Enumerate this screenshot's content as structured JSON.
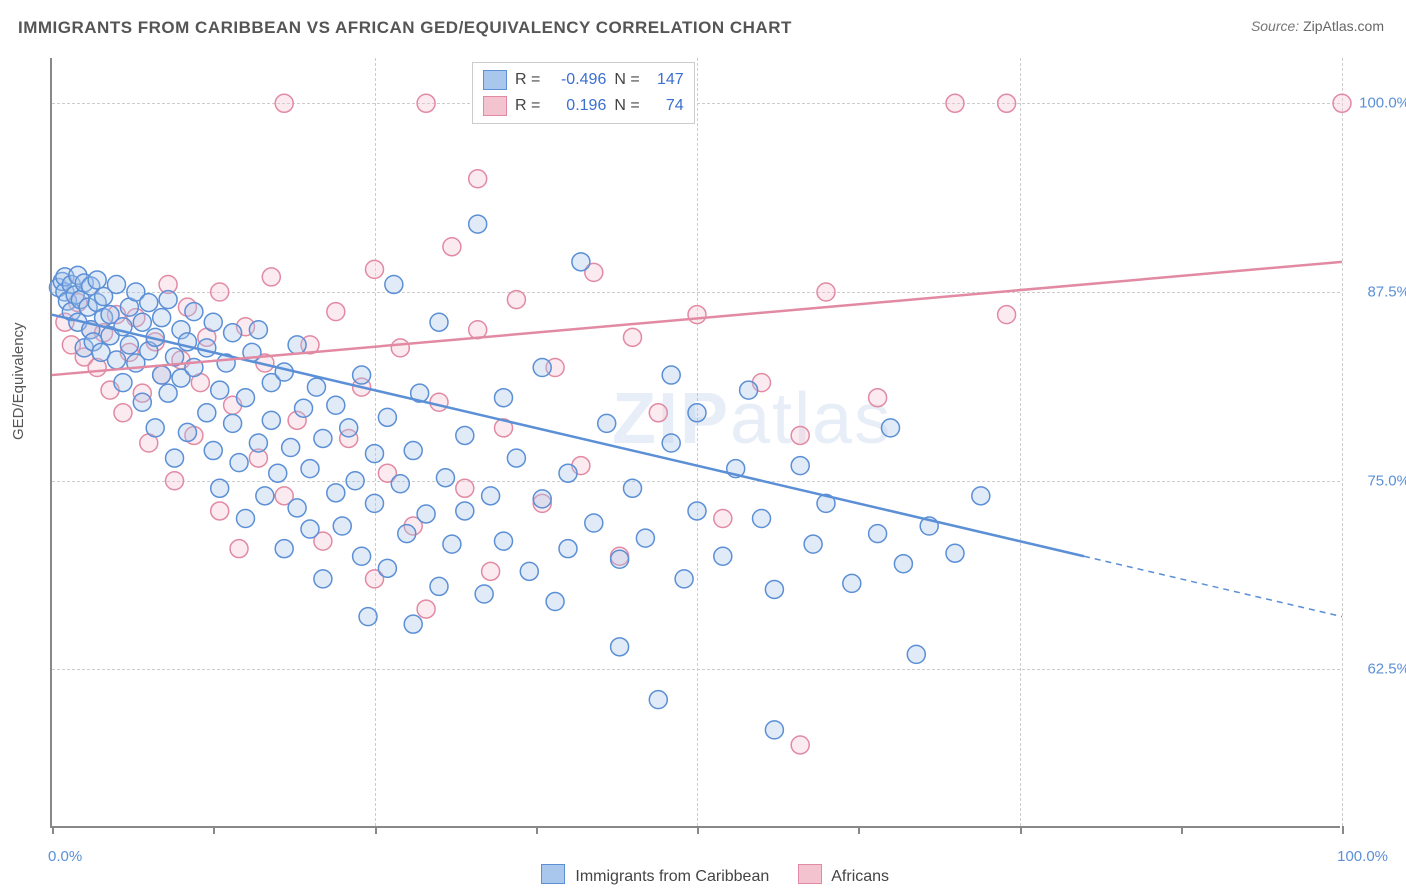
{
  "title": "IMMIGRANTS FROM CARIBBEAN VS AFRICAN GED/EQUIVALENCY CORRELATION CHART",
  "source_prefix": "Source: ",
  "source_name": "ZipAtlas.com",
  "ylabel": "GED/Equivalency",
  "watermark_bold": "ZIP",
  "watermark_rest": "atlas",
  "chart": {
    "type": "scatter",
    "xlim": [
      0,
      100
    ],
    "ylim": [
      52,
      103
    ],
    "background_color": "#ffffff",
    "grid_color": "#cccccc",
    "axis_color": "#888888",
    "marker_radius": 9,
    "marker_stroke_width": 1.5,
    "marker_fill_opacity": 0.35,
    "line_width": 2.5,
    "y_gridlines": [
      62.5,
      75,
      87.5,
      100
    ],
    "y_tick_labels": [
      "62.5%",
      "75.0%",
      "87.5%",
      "100.0%"
    ],
    "x_gridlines": [
      25,
      50,
      75,
      100
    ],
    "x_tick_positions": [
      0,
      12.5,
      25,
      37.5,
      50,
      62.5,
      75,
      87.5,
      100
    ],
    "x_tick_labels": {
      "min": "0.0%",
      "max": "100.0%"
    },
    "series": [
      {
        "key": "caribbean",
        "label": "Immigrants from Caribbean",
        "color_stroke": "#5b8fd6",
        "color_fill": "#a9c6ec",
        "r_label": "R =",
        "r_value": "-0.496",
        "n_label": "N =",
        "n_value": "147",
        "trend": {
          "x1": 0,
          "y1": 86,
          "x2_solid": 80,
          "y2_solid": 70,
          "x2": 100,
          "y2": 66
        },
        "points": [
          [
            0.5,
            87.8
          ],
          [
            0.8,
            88.2
          ],
          [
            1,
            87.5
          ],
          [
            1,
            88.5
          ],
          [
            1.2,
            86.9
          ],
          [
            1.5,
            88.0
          ],
          [
            1.5,
            86.2
          ],
          [
            1.8,
            87.3
          ],
          [
            2,
            88.6
          ],
          [
            2,
            85.5
          ],
          [
            2.2,
            87.0
          ],
          [
            2.5,
            88.1
          ],
          [
            2.5,
            83.8
          ],
          [
            2.8,
            86.5
          ],
          [
            3,
            85.0
          ],
          [
            3,
            87.9
          ],
          [
            3.2,
            84.2
          ],
          [
            3.5,
            86.8
          ],
          [
            3.5,
            88.3
          ],
          [
            3.8,
            83.5
          ],
          [
            4,
            85.8
          ],
          [
            4,
            87.2
          ],
          [
            4.5,
            84.6
          ],
          [
            4.5,
            86.0
          ],
          [
            5,
            88.0
          ],
          [
            5,
            83.0
          ],
          [
            5.5,
            85.2
          ],
          [
            5.5,
            81.5
          ],
          [
            6,
            86.5
          ],
          [
            6,
            84.0
          ],
          [
            6.5,
            87.5
          ],
          [
            6.5,
            82.8
          ],
          [
            7,
            85.5
          ],
          [
            7,
            80.2
          ],
          [
            7.5,
            83.6
          ],
          [
            7.5,
            86.8
          ],
          [
            8,
            84.5
          ],
          [
            8,
            78.5
          ],
          [
            8.5,
            82.0
          ],
          [
            8.5,
            85.8
          ],
          [
            9,
            87.0
          ],
          [
            9,
            80.8
          ],
          [
            9.5,
            83.2
          ],
          [
            9.5,
            76.5
          ],
          [
            10,
            85.0
          ],
          [
            10,
            81.8
          ],
          [
            10.5,
            78.2
          ],
          [
            10.5,
            84.2
          ],
          [
            11,
            82.5
          ],
          [
            11,
            86.2
          ],
          [
            12,
            79.5
          ],
          [
            12,
            83.8
          ],
          [
            12.5,
            77.0
          ],
          [
            12.5,
            85.5
          ],
          [
            13,
            81.0
          ],
          [
            13,
            74.5
          ],
          [
            13.5,
            82.8
          ],
          [
            14,
            78.8
          ],
          [
            14,
            84.8
          ],
          [
            14.5,
            76.2
          ],
          [
            15,
            80.5
          ],
          [
            15,
            72.5
          ],
          [
            15.5,
            83.5
          ],
          [
            16,
            77.5
          ],
          [
            16,
            85.0
          ],
          [
            16.5,
            74.0
          ],
          [
            17,
            81.5
          ],
          [
            17,
            79.0
          ],
          [
            17.5,
            75.5
          ],
          [
            18,
            82.2
          ],
          [
            18,
            70.5
          ],
          [
            18.5,
            77.2
          ],
          [
            19,
            84.0
          ],
          [
            19,
            73.2
          ],
          [
            19.5,
            79.8
          ],
          [
            20,
            75.8
          ],
          [
            20,
            71.8
          ],
          [
            20.5,
            81.2
          ],
          [
            21,
            77.8
          ],
          [
            21,
            68.5
          ],
          [
            22,
            74.2
          ],
          [
            22,
            80.0
          ],
          [
            22.5,
            72.0
          ],
          [
            23,
            78.5
          ],
          [
            23.5,
            75.0
          ],
          [
            24,
            70.0
          ],
          [
            24,
            82.0
          ],
          [
            24.5,
            66.0
          ],
          [
            25,
            76.8
          ],
          [
            25,
            73.5
          ],
          [
            26,
            79.2
          ],
          [
            26,
            69.2
          ],
          [
            26.5,
            88.0
          ],
          [
            27,
            74.8
          ],
          [
            27.5,
            71.5
          ],
          [
            28,
            77.0
          ],
          [
            28,
            65.5
          ],
          [
            28.5,
            80.8
          ],
          [
            29,
            72.8
          ],
          [
            30,
            68.0
          ],
          [
            30,
            85.5
          ],
          [
            30.5,
            75.2
          ],
          [
            31,
            70.8
          ],
          [
            32,
            78.0
          ],
          [
            32,
            73.0
          ],
          [
            33,
            92.0
          ],
          [
            33.5,
            67.5
          ],
          [
            34,
            74.0
          ],
          [
            35,
            71.0
          ],
          [
            35,
            80.5
          ],
          [
            36,
            76.5
          ],
          [
            37,
            69.0
          ],
          [
            38,
            73.8
          ],
          [
            38,
            82.5
          ],
          [
            39,
            67.0
          ],
          [
            40,
            75.5
          ],
          [
            40,
            70.5
          ],
          [
            41,
            89.5
          ],
          [
            42,
            72.2
          ],
          [
            43,
            78.8
          ],
          [
            44,
            69.8
          ],
          [
            44,
            64.0
          ],
          [
            45,
            74.5
          ],
          [
            46,
            71.2
          ],
          [
            47,
            60.5
          ],
          [
            48,
            77.5
          ],
          [
            48,
            82.0
          ],
          [
            49,
            68.5
          ],
          [
            50,
            73.0
          ],
          [
            50,
            79.5
          ],
          [
            52,
            70.0
          ],
          [
            53,
            75.8
          ],
          [
            54,
            81.0
          ],
          [
            55,
            72.5
          ],
          [
            56,
            67.8
          ],
          [
            56,
            58.5
          ],
          [
            58,
            76.0
          ],
          [
            59,
            70.8
          ],
          [
            60,
            73.5
          ],
          [
            62,
            68.2
          ],
          [
            64,
            71.5
          ],
          [
            65,
            78.5
          ],
          [
            66,
            69.5
          ],
          [
            67,
            63.5
          ],
          [
            68,
            72.0
          ],
          [
            70,
            70.2
          ],
          [
            72,
            74.0
          ]
        ]
      },
      {
        "key": "african",
        "label": "Africans",
        "color_stroke": "#e28aa3",
        "color_fill": "#f4c3d0",
        "r_label": "R =",
        "r_value": "0.196",
        "n_label": "N =",
        "n_value": "74",
        "trend": {
          "x1": 0,
          "y1": 82,
          "x2_solid": 100,
          "y2_solid": 89.5,
          "x2": 100,
          "y2": 89.5
        },
        "points": [
          [
            1,
            85.5
          ],
          [
            1.5,
            84.0
          ],
          [
            2,
            86.8
          ],
          [
            2.5,
            83.2
          ],
          [
            3,
            85.0
          ],
          [
            3.5,
            82.5
          ],
          [
            4,
            84.8
          ],
          [
            4.5,
            81.0
          ],
          [
            5,
            86.0
          ],
          [
            5.5,
            79.5
          ],
          [
            6,
            83.5
          ],
          [
            6.5,
            85.8
          ],
          [
            7,
            80.8
          ],
          [
            7.5,
            77.5
          ],
          [
            8,
            84.2
          ],
          [
            8.5,
            82.0
          ],
          [
            9,
            88.0
          ],
          [
            9.5,
            75.0
          ],
          [
            10,
            83.0
          ],
          [
            10.5,
            86.5
          ],
          [
            11,
            78.0
          ],
          [
            11.5,
            81.5
          ],
          [
            12,
            84.5
          ],
          [
            13,
            73.0
          ],
          [
            13,
            87.5
          ],
          [
            14,
            80.0
          ],
          [
            14.5,
            70.5
          ],
          [
            15,
            85.2
          ],
          [
            16,
            76.5
          ],
          [
            16.5,
            82.8
          ],
          [
            17,
            88.5
          ],
          [
            18,
            74.0
          ],
          [
            18,
            100.0
          ],
          [
            19,
            79.0
          ],
          [
            20,
            84.0
          ],
          [
            21,
            71.0
          ],
          [
            22,
            86.2
          ],
          [
            23,
            77.8
          ],
          [
            24,
            81.2
          ],
          [
            25,
            68.5
          ],
          [
            25,
            89.0
          ],
          [
            26,
            75.5
          ],
          [
            27,
            83.8
          ],
          [
            28,
            72.0
          ],
          [
            29,
            66.5
          ],
          [
            29,
            100.0
          ],
          [
            30,
            80.2
          ],
          [
            31,
            90.5
          ],
          [
            32,
            74.5
          ],
          [
            33,
            85.0
          ],
          [
            33,
            95.0
          ],
          [
            34,
            69.0
          ],
          [
            35,
            78.5
          ],
          [
            36,
            87.0
          ],
          [
            38,
            73.5
          ],
          [
            39,
            82.5
          ],
          [
            40,
            100.0
          ],
          [
            41,
            76.0
          ],
          [
            42,
            88.8
          ],
          [
            44,
            70.0
          ],
          [
            45,
            84.5
          ],
          [
            47,
            79.5
          ],
          [
            48,
            100.0
          ],
          [
            50,
            86.0
          ],
          [
            52,
            72.5
          ],
          [
            55,
            81.5
          ],
          [
            58,
            78.0
          ],
          [
            58,
            57.5
          ],
          [
            60,
            87.5
          ],
          [
            64,
            80.5
          ],
          [
            70,
            100.0
          ],
          [
            74,
            100.0
          ],
          [
            74,
            86.0
          ],
          [
            100,
            100.0
          ]
        ]
      }
    ]
  },
  "tick_label_color": "#5b8fd6",
  "text_color": "#555555"
}
